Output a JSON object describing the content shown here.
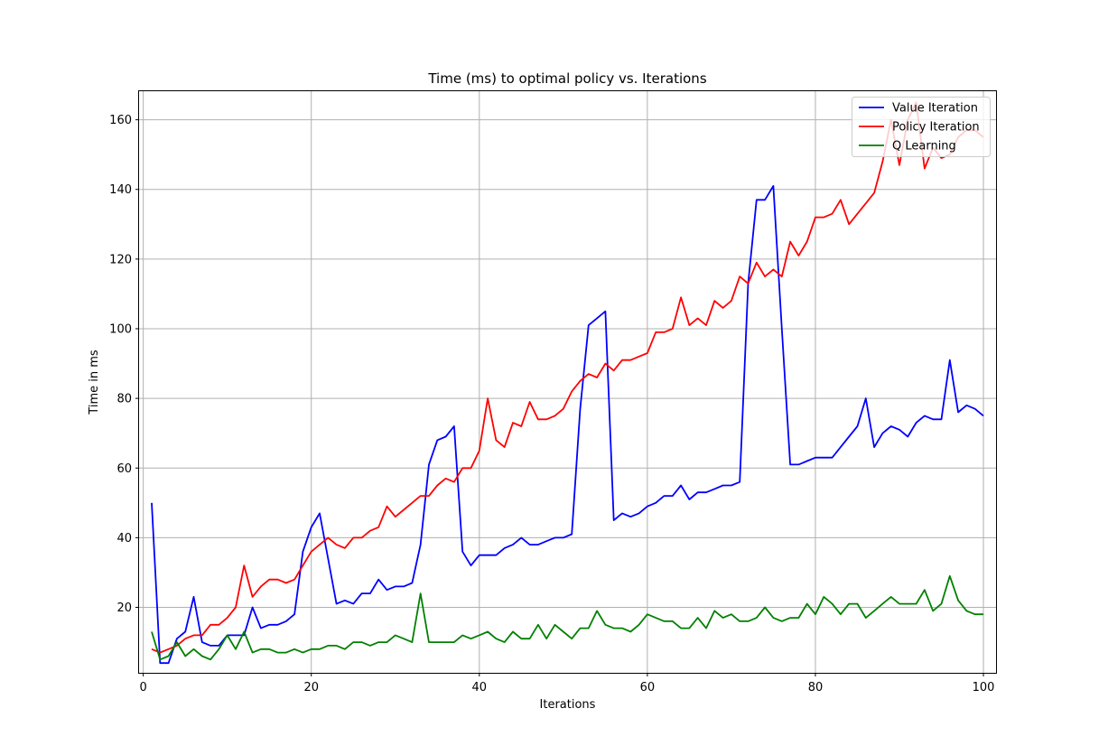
{
  "chart_data": {
    "type": "line",
    "title": "Time (ms) to optimal policy vs. Iterations",
    "xlabel": "Iterations",
    "ylabel": "Time in ms",
    "xlim": [
      -0.5,
      101.5
    ],
    "ylim": [
      1.2,
      168.2
    ],
    "xticks": [
      0,
      20,
      40,
      60,
      80,
      100
    ],
    "yticks": [
      20,
      40,
      60,
      80,
      100,
      120,
      140,
      160
    ],
    "grid": true,
    "legend_position": "upper right",
    "x": [
      1,
      2,
      3,
      4,
      5,
      6,
      7,
      8,
      9,
      10,
      11,
      12,
      13,
      14,
      15,
      16,
      17,
      18,
      19,
      20,
      21,
      22,
      23,
      24,
      25,
      26,
      27,
      28,
      29,
      30,
      31,
      32,
      33,
      34,
      35,
      36,
      37,
      38,
      39,
      40,
      41,
      42,
      43,
      44,
      45,
      46,
      47,
      48,
      49,
      50,
      51,
      52,
      53,
      54,
      55,
      56,
      57,
      58,
      59,
      60,
      61,
      62,
      63,
      64,
      65,
      66,
      67,
      68,
      69,
      70,
      71,
      72,
      73,
      74,
      75,
      76,
      77,
      78,
      79,
      80,
      81,
      82,
      83,
      84,
      85,
      86,
      87,
      88,
      89,
      90,
      91,
      92,
      93,
      94,
      95,
      96,
      97,
      98,
      99,
      100
    ],
    "series": [
      {
        "name": "Value Iteration",
        "color": "#0000ff",
        "values": [
          50,
          4,
          4,
          11,
          13,
          23,
          10,
          9,
          9,
          12,
          12,
          12,
          20,
          14,
          15,
          15,
          16,
          18,
          36,
          43,
          47,
          34,
          21,
          22,
          21,
          24,
          24,
          28,
          25,
          26,
          26,
          27,
          38,
          61,
          68,
          69,
          72,
          36,
          32,
          35,
          35,
          35,
          37,
          38,
          40,
          38,
          38,
          39,
          40,
          40,
          41,
          77,
          101,
          103,
          105,
          45,
          47,
          46,
          47,
          49,
          50,
          52,
          52,
          55,
          51,
          53,
          53,
          54,
          55,
          55,
          56,
          113,
          137,
          137,
          141,
          100,
          61,
          61,
          62,
          63,
          63,
          63,
          66,
          69,
          72,
          80,
          66,
          70,
          72,
          71,
          69,
          73,
          75,
          74,
          74,
          91,
          76,
          78,
          77,
          75
        ]
      },
      {
        "name": "Policy Iteration",
        "color": "#ff0000",
        "values": [
          8,
          7,
          8,
          9,
          11,
          12,
          12,
          15,
          15,
          17,
          20,
          32,
          23,
          26,
          28,
          28,
          27,
          28,
          32,
          36,
          38,
          40,
          38,
          37,
          40,
          40,
          42,
          43,
          49,
          46,
          48,
          50,
          52,
          52,
          55,
          57,
          56,
          60,
          60,
          65,
          80,
          68,
          66,
          73,
          72,
          79,
          74,
          74,
          75,
          77,
          82,
          85,
          87,
          86,
          90,
          88,
          91,
          91,
          92,
          93,
          99,
          99,
          100,
          109,
          101,
          103,
          101,
          108,
          106,
          108,
          115,
          113,
          119,
          115,
          117,
          115,
          125,
          121,
          125,
          132,
          132,
          133,
          137,
          130,
          133,
          136,
          139,
          148,
          160,
          147,
          160,
          165,
          146,
          152,
          149,
          150,
          155,
          157,
          157,
          155
        ]
      },
      {
        "name": "Q Learning",
        "color": "#008000",
        "values": [
          13,
          5,
          6,
          10,
          6,
          8,
          6,
          5,
          8,
          12,
          8,
          13,
          7,
          8,
          8,
          7,
          7,
          8,
          7,
          8,
          8,
          9,
          9,
          8,
          10,
          10,
          9,
          10,
          10,
          12,
          11,
          10,
          24,
          10,
          10,
          10,
          10,
          12,
          11,
          12,
          13,
          11,
          10,
          13,
          11,
          11,
          15,
          11,
          15,
          13,
          11,
          14,
          14,
          19,
          15,
          14,
          14,
          13,
          15,
          18,
          17,
          16,
          16,
          14,
          14,
          17,
          14,
          19,
          17,
          18,
          16,
          16,
          17,
          20,
          17,
          16,
          17,
          17,
          21,
          18,
          23,
          21,
          18,
          21,
          21,
          17,
          19,
          21,
          23,
          21,
          21,
          21,
          25,
          19,
          21,
          29,
          22,
          19,
          18,
          18
        ]
      }
    ]
  }
}
